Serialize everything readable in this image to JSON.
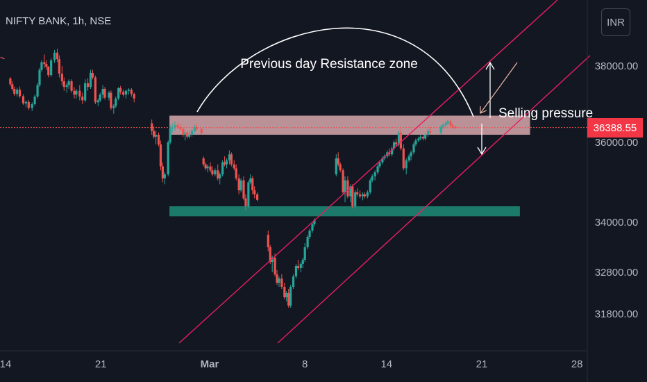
{
  "header": {
    "title": "NIFTY BANK, 1h, NSE",
    "currency": "INR"
  },
  "colors": {
    "background": "#131722",
    "bull": "#26a69a",
    "bear": "#ef5350",
    "channel": "#e91e63",
    "resistance_zone": "#e8b4b8",
    "support_zone": "#1b7a6a",
    "price_tag": "#f23645"
  },
  "chart_data": {
    "type": "candlestick",
    "title": "NIFTY BANK, 1h, NSE",
    "y_ticks": [
      31800,
      32800,
      34000,
      36000,
      38000
    ],
    "y_tick_labels": [
      "31800.00",
      "32800.00",
      "34000.00",
      "36000.00",
      "38000.00"
    ],
    "x_tick_labels": [
      "14",
      "21",
      "Mar",
      "8",
      "14",
      "21",
      "28"
    ],
    "x_tick_day_index": [
      0,
      7,
      15,
      22,
      28,
      35,
      42
    ],
    "last_price": 36388.55,
    "last_price_label": "36388.55",
    "grid": false,
    "candles": [
      [
        -0.3,
        38230,
        38240,
        38210,
        38220
      ],
      [
        -0.15,
        38200,
        38210,
        38180,
        38190
      ],
      [
        0.35,
        37670,
        37710,
        37470,
        37520
      ],
      [
        0.5,
        37520,
        37600,
        37350,
        37400
      ],
      [
        0.65,
        37400,
        37460,
        37220,
        37270
      ],
      [
        0.85,
        37270,
        37430,
        37200,
        37380
      ],
      [
        1.05,
        37380,
        37460,
        37160,
        37210
      ],
      [
        1.3,
        37210,
        37260,
        36980,
        37020
      ],
      [
        1.5,
        37020,
        37100,
        36920,
        37060
      ],
      [
        1.7,
        37060,
        37110,
        36850,
        36900
      ],
      [
        1.95,
        36900,
        37050,
        36820,
        37000
      ],
      [
        2.15,
        37000,
        37250,
        36960,
        37200
      ],
      [
        2.35,
        37200,
        37560,
        37150,
        37500
      ],
      [
        2.5,
        37500,
        37950,
        37450,
        37900
      ],
      [
        2.65,
        37900,
        38150,
        37850,
        38100
      ],
      [
        2.85,
        38100,
        38300,
        37950,
        38050
      ],
      [
        3.0,
        38050,
        38150,
        37900,
        37980
      ],
      [
        3.15,
        37980,
        38000,
        37700,
        37760
      ],
      [
        3.35,
        37760,
        38200,
        37720,
        38150
      ],
      [
        3.6,
        38150,
        38420,
        38080,
        38350
      ],
      [
        3.8,
        38350,
        38450,
        38100,
        38180
      ],
      [
        3.95,
        38180,
        38280,
        37700,
        37800
      ],
      [
        4.15,
        37800,
        38000,
        37500,
        37600
      ],
      [
        4.3,
        37600,
        37700,
        37350,
        37450
      ],
      [
        4.5,
        37450,
        37560,
        37300,
        37500
      ],
      [
        4.65,
        37500,
        37650,
        37400,
        37600
      ],
      [
        4.85,
        37600,
        37650,
        37300,
        37350
      ],
      [
        5.05,
        37350,
        37450,
        37150,
        37250
      ],
      [
        5.2,
        37250,
        37400,
        37150,
        37350
      ],
      [
        5.45,
        37350,
        37500,
        37100,
        37200
      ],
      [
        5.65,
        37200,
        37300,
        37000,
        37100
      ],
      [
        5.85,
        37100,
        37650,
        37050,
        37550
      ],
      [
        6.05,
        37550,
        37680,
        37350,
        37450
      ],
      [
        6.25,
        37450,
        37900,
        37400,
        37820
      ],
      [
        6.4,
        37820,
        37900,
        37650,
        37700
      ],
      [
        6.6,
        37700,
        37750,
        37000,
        37050
      ],
      [
        6.8,
        37050,
        37150,
        36950,
        37100
      ],
      [
        6.95,
        37100,
        37300,
        37050,
        37250
      ],
      [
        7.15,
        37250,
        37500,
        37150,
        37400
      ],
      [
        7.3,
        37400,
        37450,
        37120,
        37170
      ],
      [
        7.6,
        37170,
        37350,
        37100,
        37300
      ],
      [
        7.75,
        37300,
        37360,
        36850,
        36900
      ],
      [
        7.95,
        36900,
        37000,
        36750,
        36950
      ],
      [
        8.1,
        36950,
        37200,
        36900,
        37150
      ],
      [
        8.3,
        37150,
        37450,
        37100,
        37420
      ],
      [
        8.45,
        37420,
        37480,
        37250,
        37320
      ],
      [
        8.65,
        37320,
        37380,
        37200,
        37250
      ],
      [
        8.85,
        37250,
        37380,
        37150,
        37350
      ],
      [
        9.05,
        37350,
        37420,
        37250,
        37380
      ],
      [
        9.25,
        37380,
        37420,
        37200,
        37270
      ],
      [
        9.45,
        37270,
        37300,
        37050,
        37150
      ],
      [
        10.75,
        36500,
        36600,
        36200,
        36300
      ],
      [
        10.9,
        36300,
        36420,
        36100,
        36150
      ],
      [
        11.05,
        36150,
        36300,
        35950,
        36200
      ],
      [
        11.25,
        36200,
        36260,
        35900,
        35950
      ],
      [
        11.4,
        35950,
        36050,
        35300,
        35400
      ],
      [
        11.55,
        35400,
        35500,
        35000,
        35100
      ],
      [
        11.7,
        35100,
        35250,
        34950,
        35200
      ],
      [
        11.95,
        35200,
        36050,
        35150,
        36000
      ],
      [
        12.1,
        36000,
        36450,
        35950,
        36350
      ],
      [
        12.25,
        36350,
        36500,
        36250,
        36400
      ],
      [
        12.45,
        36400,
        36550,
        36300,
        36450
      ],
      [
        12.65,
        36450,
        36500,
        36350,
        36400
      ],
      [
        12.85,
        36400,
        36480,
        36300,
        36350
      ],
      [
        13.05,
        36350,
        36380,
        36150,
        36200
      ],
      [
        13.2,
        36200,
        36300,
        36050,
        36250
      ],
      [
        13.35,
        36250,
        36300,
        36100,
        36150
      ],
      [
        13.5,
        36150,
        36280,
        36100,
        36200
      ],
      [
        13.7,
        36200,
        36350,
        36150,
        36300
      ],
      [
        13.9,
        36300,
        36450,
        36250,
        36400
      ],
      [
        14.05,
        36400,
        36500,
        36300,
        36350
      ],
      [
        14.4,
        36350,
        36380,
        36200,
        36250
      ],
      [
        14.55,
        35600,
        35650,
        35400,
        35450
      ],
      [
        14.7,
        35450,
        35500,
        35300,
        35350
      ],
      [
        14.85,
        35350,
        35450,
        35250,
        35400
      ],
      [
        15.05,
        35400,
        35500,
        35250,
        35300
      ],
      [
        15.2,
        35300,
        35400,
        35150,
        35200
      ],
      [
        15.4,
        35200,
        35350,
        35150,
        35300
      ],
      [
        15.6,
        35300,
        35450,
        35050,
        35100
      ],
      [
        15.75,
        35100,
        35250,
        34950,
        35200
      ],
      [
        15.95,
        35200,
        35550,
        35150,
        35500
      ],
      [
        16.1,
        35500,
        35650,
        35400,
        35450
      ],
      [
        16.25,
        35450,
        35600,
        35350,
        35550
      ],
      [
        16.45,
        35550,
        35800,
        35450,
        35700
      ],
      [
        16.6,
        35700,
        35750,
        35400,
        35450
      ],
      [
        16.8,
        35450,
        35550,
        35300,
        35350
      ],
      [
        16.95,
        35350,
        35450,
        35050,
        35100
      ],
      [
        17.15,
        35100,
        35200,
        34700,
        34800
      ],
      [
        17.3,
        34800,
        35100,
        34750,
        35050
      ],
      [
        17.5,
        35050,
        35150,
        34550,
        34600
      ],
      [
        17.65,
        34600,
        34700,
        34300,
        34400
      ],
      [
        17.85,
        34400,
        35050,
        34350,
        35000
      ],
      [
        18.0,
        35000,
        35200,
        34950,
        35100
      ],
      [
        18.15,
        35100,
        35150,
        34700,
        34800
      ],
      [
        18.3,
        34800,
        34900,
        34600,
        34700
      ],
      [
        18.5,
        34700,
        34750,
        34520,
        34560
      ],
      [
        19.3,
        33700,
        33800,
        33300,
        33400
      ],
      [
        19.45,
        33400,
        33450,
        33000,
        33050
      ],
      [
        19.6,
        33050,
        33200,
        32800,
        33150
      ],
      [
        19.8,
        33150,
        33250,
        32700,
        32750
      ],
      [
        19.95,
        32750,
        32850,
        32500,
        32550
      ],
      [
        20.1,
        32550,
        32700,
        32450,
        32650
      ],
      [
        20.3,
        32650,
        32750,
        32400,
        32450
      ],
      [
        20.5,
        32450,
        32550,
        32150,
        32200
      ],
      [
        20.65,
        32200,
        32350,
        32100,
        32300
      ],
      [
        20.8,
        32300,
        32400,
        31950,
        32000
      ],
      [
        20.95,
        32000,
        32500,
        31950,
        32450
      ],
      [
        21.15,
        32450,
        32750,
        32400,
        32700
      ],
      [
        21.35,
        32700,
        33000,
        32650,
        32950
      ],
      [
        21.5,
        32950,
        33100,
        32850,
        32900
      ],
      [
        21.7,
        32900,
        33050,
        32800,
        33000
      ],
      [
        21.85,
        33000,
        33150,
        32900,
        33100
      ],
      [
        22.0,
        33100,
        33500,
        33050,
        33400
      ],
      [
        22.2,
        33400,
        33700,
        33350,
        33650
      ],
      [
        22.35,
        33650,
        33850,
        33600,
        33800
      ],
      [
        22.55,
        33800,
        34000,
        33750,
        33950
      ],
      [
        22.7,
        33950,
        34100,
        33900,
        34050
      ],
      [
        24.3,
        35200,
        35700,
        35150,
        35600
      ],
      [
        24.45,
        35600,
        35750,
        35400,
        35450
      ],
      [
        24.6,
        35450,
        35500,
        35250,
        35300
      ],
      [
        24.8,
        35300,
        35350,
        34700,
        34750
      ],
      [
        24.95,
        34750,
        35150,
        34500,
        35050
      ],
      [
        25.15,
        35050,
        35150,
        34600,
        34650
      ],
      [
        25.35,
        34650,
        34950,
        34500,
        34900
      ],
      [
        25.5,
        34900,
        34950,
        34350,
        34400
      ],
      [
        25.7,
        34400,
        34800,
        34350,
        34750
      ],
      [
        25.85,
        34750,
        34850,
        34650,
        34700
      ],
      [
        26.05,
        34700,
        34800,
        34600,
        34650
      ],
      [
        26.25,
        34650,
        34750,
        34550,
        34700
      ],
      [
        26.4,
        34700,
        34750,
        34600,
        34650
      ],
      [
        26.6,
        34650,
        34800,
        34600,
        34750
      ],
      [
        26.8,
        34750,
        35100,
        34700,
        35050
      ],
      [
        26.95,
        35050,
        35200,
        35000,
        35150
      ],
      [
        27.15,
        35150,
        35300,
        35050,
        35250
      ],
      [
        27.35,
        35250,
        35450,
        35200,
        35400
      ],
      [
        27.5,
        35400,
        35550,
        35350,
        35500
      ],
      [
        27.7,
        35500,
        35650,
        35450,
        35600
      ],
      [
        27.85,
        35600,
        35700,
        35550,
        35650
      ],
      [
        28.05,
        35650,
        35800,
        35600,
        35750
      ],
      [
        28.2,
        35750,
        35850,
        35650,
        35700
      ],
      [
        28.4,
        35700,
        35900,
        35650,
        35850
      ],
      [
        28.55,
        35850,
        36050,
        35800,
        36000
      ],
      [
        28.7,
        36000,
        36100,
        35900,
        35950
      ],
      [
        28.9,
        35950,
        36300,
        35900,
        36250
      ],
      [
        29.05,
        36250,
        36350,
        35800,
        35850
      ],
      [
        29.25,
        35850,
        35950,
        35300,
        35350
      ],
      [
        29.45,
        35350,
        35600,
        35200,
        35550
      ],
      [
        29.65,
        35550,
        35700,
        35500,
        35650
      ],
      [
        29.8,
        35650,
        35800,
        35550,
        35750
      ],
      [
        30.0,
        35750,
        36000,
        35700,
        35950
      ],
      [
        30.15,
        35950,
        36100,
        35900,
        36050
      ],
      [
        30.35,
        36050,
        36150,
        36000,
        36100
      ],
      [
        30.5,
        36100,
        36200,
        36050,
        36150
      ],
      [
        30.7,
        36150,
        36200,
        36050,
        36100
      ],
      [
        30.85,
        36100,
        36250,
        36050,
        36200
      ],
      [
        31.05,
        36200,
        36350,
        36150,
        36300
      ],
      [
        31.2,
        36300,
        36400,
        36200,
        36250
      ],
      [
        32.0,
        36250,
        36450,
        36200,
        36400
      ],
      [
        32.15,
        36400,
        36500,
        36350,
        36450
      ],
      [
        32.35,
        36450,
        36550,
        36400,
        36500
      ],
      [
        32.5,
        36500,
        36600,
        36450,
        36550
      ],
      [
        32.7,
        36550,
        36600,
        36400,
        36450
      ],
      [
        32.85,
        36450,
        36500,
        36350,
        36400
      ],
      [
        33.05,
        36400,
        36450,
        36350,
        36389
      ]
    ]
  },
  "annotations": {
    "arc_label": "Previous day Resistance zone",
    "pressure_label": "Selling pressure"
  }
}
